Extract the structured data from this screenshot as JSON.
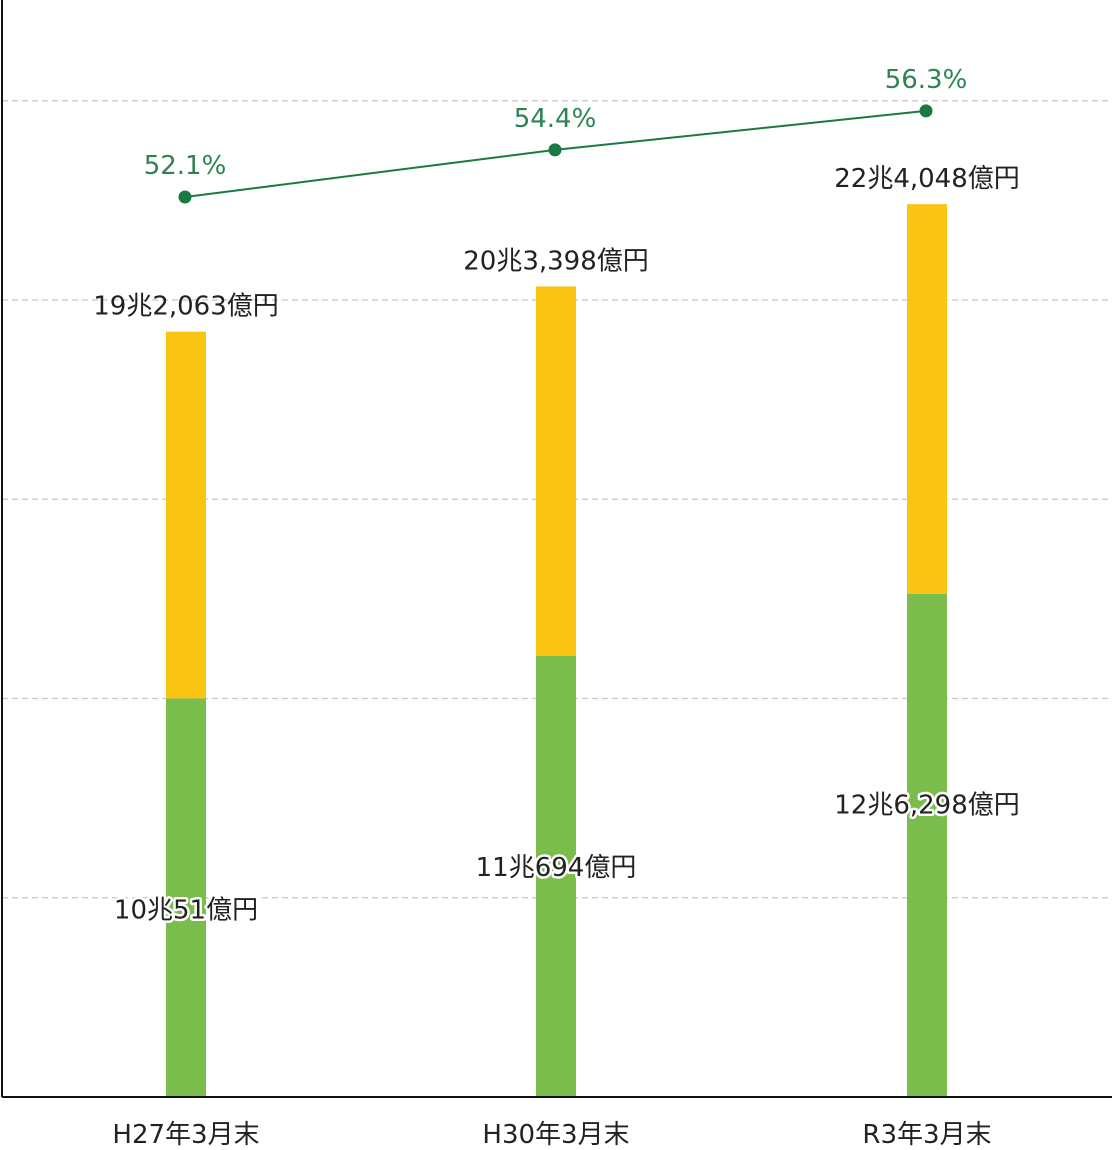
{
  "chart_data": {
    "type": "bar",
    "stacked": true,
    "categories": [
      "H27年3月末",
      "H30年3月末",
      "R3年3月末"
    ],
    "series": [
      {
        "values": [
          10.0051,
          11.0694,
          12.6298
        ],
        "value_labels": [
          "10兆51億円",
          "11兆694億円",
          "12兆6,298億円"
        ]
      },
      {
        "values": [
          9.2012,
          9.2704,
          9.775
        ]
      }
    ],
    "totals": [
      19.2063,
      20.3398,
      22.4048
    ],
    "total_labels": [
      "19兆2,063億円",
      "20兆3,398億円",
      "22兆4,048億円"
    ],
    "line": {
      "values": [
        52.1,
        54.4,
        56.3
      ],
      "labels": [
        "52.1%",
        "54.4%",
        "56.3%"
      ]
    },
    "ylim": [
      0,
      27.5
    ],
    "grid": true
  },
  "colors": {
    "lower": "#7bbd4c",
    "upper": "#f9c412",
    "line": "#1a7a44",
    "line_label": "#2d8452",
    "text": "#222222",
    "grid": "#c8c8c8",
    "axis": "#111111"
  }
}
